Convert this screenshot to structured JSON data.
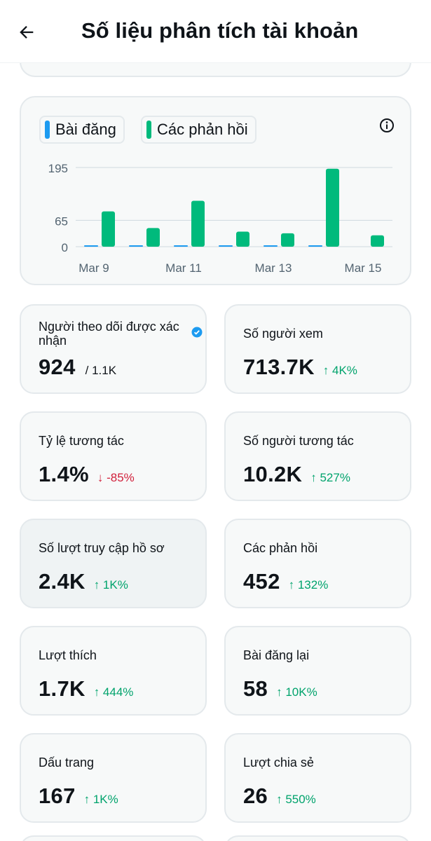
{
  "header": {
    "title": "Số liệu phân tích tài khoản",
    "back_icon": "arrow-left-icon"
  },
  "legend": {
    "posts_label": "Bài đăng",
    "replies_label": "Các phản hồi",
    "posts_color": "#1d9bf0",
    "replies_color": "#00ba7c"
  },
  "chart_data": {
    "type": "bar",
    "categories": [
      "Mar 9",
      "Mar 10",
      "Mar 11",
      "Mar 12",
      "Mar 13",
      "Mar 14",
      "Mar 15"
    ],
    "x_tick_labels": [
      "Mar 9",
      "Mar 11",
      "Mar 13",
      "Mar 15"
    ],
    "y_ticks": [
      0,
      65,
      195
    ],
    "ylim": [
      0,
      195
    ],
    "grid": true,
    "series": [
      {
        "name": "Bài đăng",
        "color": "#1d9bf0",
        "values": [
          1,
          1,
          1,
          1,
          1,
          1,
          0
        ]
      },
      {
        "name": "Các phản hồi",
        "color": "#00ba7c",
        "values": [
          87,
          46,
          113,
          37,
          33,
          192,
          28
        ]
      }
    ]
  },
  "stats": [
    {
      "label": "Người theo dõi được xác nhận",
      "value": "924",
      "sub": "/ 1.1K",
      "verified_icon": "verified-badge-icon"
    },
    {
      "label": "Số người xem",
      "value": "713.7K",
      "change": "↑ 4K%",
      "trend": "up"
    },
    {
      "label": "Tỷ lệ tương tác",
      "value": "1.4%",
      "change": "↓ -85%",
      "trend": "down"
    },
    {
      "label": "Số người tương tác",
      "value": "10.2K",
      "change": "↑ 527%",
      "trend": "up"
    },
    {
      "label": "Số lượt truy cập hồ sơ",
      "value": "2.4K",
      "change": "↑ 1K%",
      "trend": "up"
    },
    {
      "label": "Các phản hồi",
      "value": "452",
      "change": "↑ 132%",
      "trend": "up"
    },
    {
      "label": "Lượt thích",
      "value": "1.7K",
      "change": "↑ 444%",
      "trend": "up"
    },
    {
      "label": "Bài đăng lại",
      "value": "58",
      "change": "↑ 10K%",
      "trend": "up"
    },
    {
      "label": "Dấu trang",
      "value": "167",
      "change": "↑ 1K%",
      "trend": "up"
    },
    {
      "label": "Lượt chia sẻ",
      "value": "26",
      "change": "↑ 550%",
      "trend": "up"
    }
  ]
}
